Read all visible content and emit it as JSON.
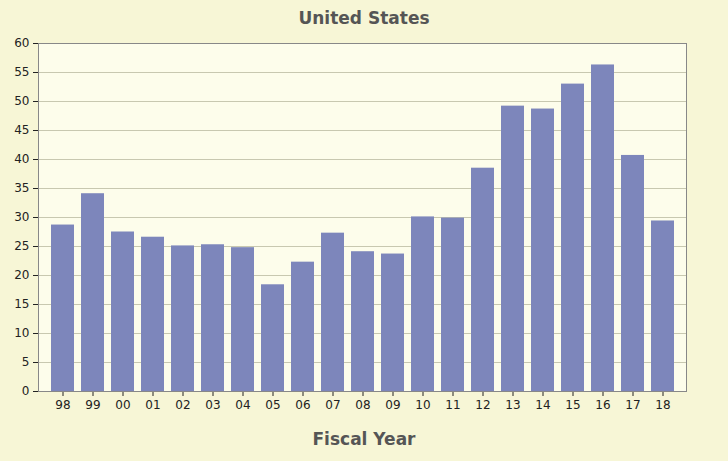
{
  "chart_data": {
    "type": "bar",
    "title": "United States",
    "x_label": "Fiscal Year",
    "categories": [
      "98",
      "99",
      "00",
      "01",
      "02",
      "03",
      "04",
      "05",
      "06",
      "07",
      "08",
      "09",
      "10",
      "11",
      "12",
      "13",
      "14",
      "15",
      "16",
      "17",
      "18"
    ],
    "values": [
      28.7,
      34.1,
      27.5,
      26.6,
      25.1,
      25.3,
      24.8,
      18.4,
      22.3,
      27.3,
      24.1,
      23.7,
      30.1,
      29.9,
      38.5,
      49.2,
      48.7,
      53.0,
      56.3,
      40.7,
      29.4
    ],
    "color": "#7d86bb",
    "ylim": [
      0,
      60
    ],
    "yticks": [
      0,
      5,
      10,
      15,
      20,
      25,
      30,
      35,
      40,
      45,
      50,
      55,
      60
    ],
    "grid": true
  }
}
